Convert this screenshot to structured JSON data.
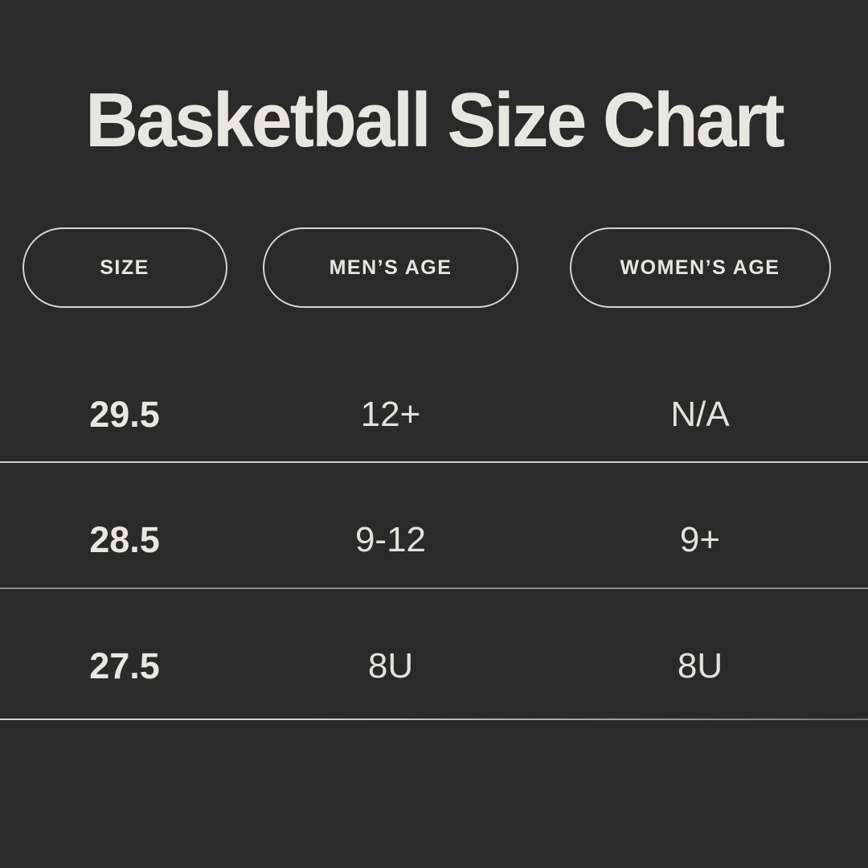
{
  "title": "Basketball Size Chart",
  "chart_data": {
    "type": "table",
    "title": "Basketball Size Chart",
    "columns": [
      "SIZE",
      "MEN’S AGE",
      "WOMEN’S AGE"
    ],
    "rows": [
      [
        "29.5",
        "12+",
        "N/A"
      ],
      [
        "28.5",
        "9-12",
        "9+"
      ],
      [
        "27.5",
        "8U",
        "8U"
      ]
    ],
    "layout_hints": {
      "header_style": "outlined-pill",
      "row_dividers": true,
      "grid": "horizontal-lines-only"
    }
  },
  "colors": {
    "background": "#2a2a2a",
    "text": "#e8e6e0",
    "value_text": "#e3e1db",
    "pill_border": "#d6d3cd",
    "divider_light": "#d6d3cd",
    "divider_gray": "#8d8d8d",
    "divider_fade_end": "#767676"
  }
}
